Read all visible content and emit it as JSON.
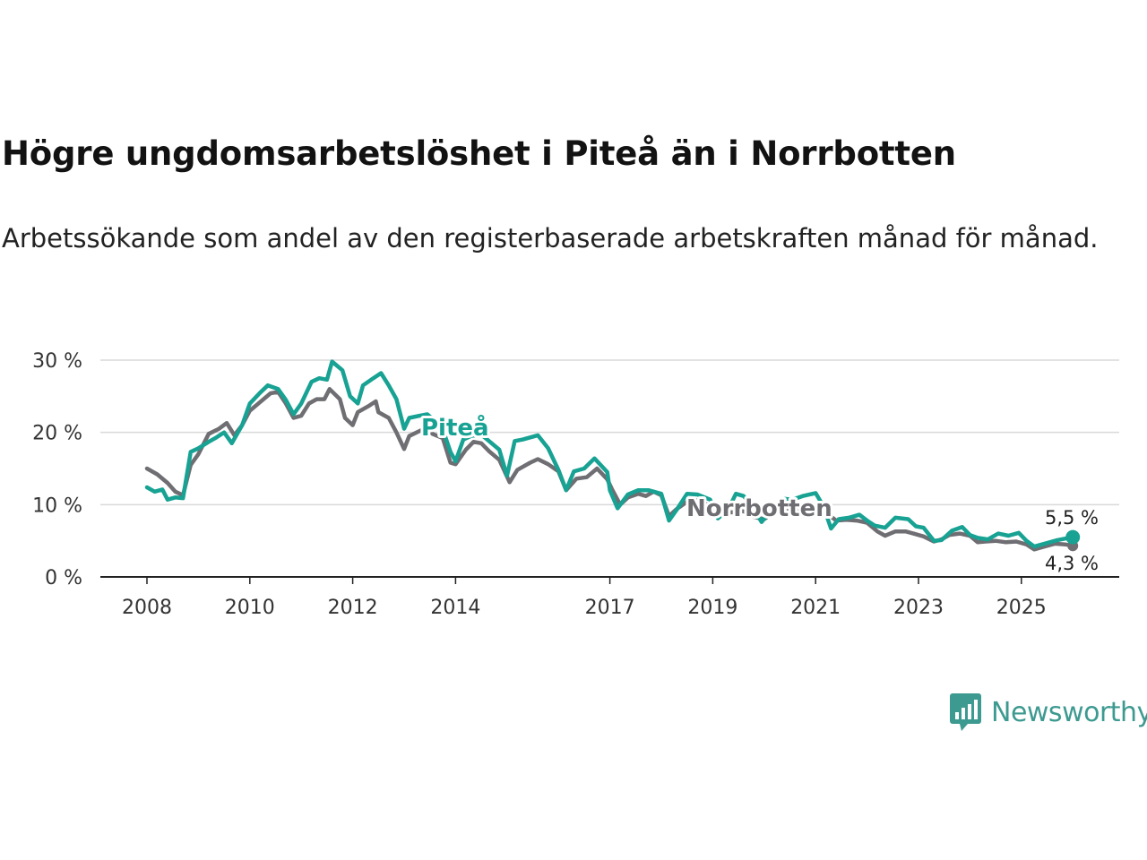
{
  "header": {
    "title": "Högre ungdomsarbetslöshet i Piteå än i Norrbotten",
    "subtitle": "Arbetssökande som andel av den registerbaserade arbetskraften månad för månad."
  },
  "brand": {
    "name": "Newsworthy",
    "icon": "newsworthy-logo-icon",
    "color": "#3d9a90"
  },
  "chart_data": {
    "type": "line",
    "title": "Högre ungdomsarbetslöshet i Piteå än i Norrbotten",
    "ylabel": "",
    "xlabel": "",
    "ylim": [
      0,
      30
    ],
    "xlim": [
      2007.7,
      2026.4
    ],
    "grid": true,
    "yticks": [
      0,
      10,
      20,
      30
    ],
    "ytick_labels": [
      "0 %",
      "10 %",
      "20 %",
      "30 %"
    ],
    "xticks": [
      2008,
      2010,
      2012,
      2014,
      2017,
      2019,
      2021,
      2023,
      2025
    ],
    "xtick_labels": [
      "2008",
      "2010",
      "2012",
      "2014",
      "2017",
      "2019",
      "2021",
      "2023",
      "2025"
    ],
    "series": [
      {
        "name": "Norrbotten",
        "label": "Norrbotten",
        "color": "#6e6e73",
        "end_label": "4,3 %",
        "points": [
          [
            2008.0,
            15.0
          ],
          [
            2008.2,
            14.2
          ],
          [
            2008.4,
            13.0
          ],
          [
            2008.55,
            11.8
          ],
          [
            2008.7,
            11.3
          ],
          [
            2008.85,
            15.5
          ],
          [
            2009.0,
            17.0
          ],
          [
            2009.2,
            19.8
          ],
          [
            2009.4,
            20.5
          ],
          [
            2009.55,
            21.3
          ],
          [
            2009.7,
            19.6
          ],
          [
            2009.85,
            21.0
          ],
          [
            2010.0,
            23.0
          ],
          [
            2010.2,
            24.2
          ],
          [
            2010.4,
            25.4
          ],
          [
            2010.55,
            25.6
          ],
          [
            2010.7,
            24.0
          ],
          [
            2010.85,
            22.0
          ],
          [
            2011.0,
            22.3
          ],
          [
            2011.15,
            24.0
          ],
          [
            2011.3,
            24.6
          ],
          [
            2011.45,
            24.6
          ],
          [
            2011.55,
            26.0
          ],
          [
            2011.75,
            24.6
          ],
          [
            2011.85,
            22.0
          ],
          [
            2012.0,
            21.0
          ],
          [
            2012.1,
            22.8
          ],
          [
            2012.3,
            23.6
          ],
          [
            2012.45,
            24.3
          ],
          [
            2012.5,
            22.8
          ],
          [
            2012.7,
            22.0
          ],
          [
            2012.85,
            20.0
          ],
          [
            2013.0,
            17.7
          ],
          [
            2013.1,
            19.5
          ],
          [
            2013.3,
            20.2
          ],
          [
            2013.45,
            20.7
          ],
          [
            2013.55,
            19.8
          ],
          [
            2013.75,
            19.2
          ],
          [
            2013.9,
            15.8
          ],
          [
            2014.0,
            15.6
          ],
          [
            2014.2,
            17.6
          ],
          [
            2014.35,
            18.7
          ],
          [
            2014.5,
            18.5
          ],
          [
            2014.65,
            17.4
          ],
          [
            2014.85,
            16.2
          ],
          [
            2015.05,
            13.1
          ],
          [
            2015.2,
            14.8
          ],
          [
            2015.45,
            15.8
          ],
          [
            2015.6,
            16.3
          ],
          [
            2015.8,
            15.6
          ],
          [
            2016.0,
            14.6
          ],
          [
            2016.15,
            12.0
          ],
          [
            2016.35,
            13.6
          ],
          [
            2016.55,
            13.8
          ],
          [
            2016.75,
            15.0
          ],
          [
            2016.95,
            13.5
          ],
          [
            2017.05,
            12.0
          ],
          [
            2017.2,
            10.0
          ],
          [
            2017.35,
            11.0
          ],
          [
            2017.55,
            11.5
          ],
          [
            2017.7,
            11.2
          ],
          [
            2017.85,
            11.8
          ],
          [
            2018.0,
            11.3
          ],
          [
            2018.15,
            8.4
          ],
          [
            2018.3,
            9.4
          ],
          [
            2018.5,
            10.4
          ],
          [
            2018.7,
            10.6
          ],
          [
            2018.9,
            10.0
          ],
          [
            2019.1,
            8.4
          ],
          [
            2019.3,
            8.9
          ],
          [
            2019.6,
            9.1
          ],
          [
            2019.8,
            8.3
          ],
          [
            2020.0,
            8.0
          ],
          [
            2020.2,
            9.0
          ],
          [
            2020.4,
            9.2
          ],
          [
            2020.6,
            9.2
          ],
          [
            2020.8,
            9.0
          ],
          [
            2021.0,
            8.7
          ],
          [
            2021.2,
            8.9
          ],
          [
            2021.4,
            7.8
          ],
          [
            2021.6,
            7.9
          ],
          [
            2021.8,
            7.8
          ],
          [
            2022.0,
            7.5
          ],
          [
            2022.2,
            6.3
          ],
          [
            2022.35,
            5.7
          ],
          [
            2022.55,
            6.3
          ],
          [
            2022.75,
            6.3
          ],
          [
            2022.9,
            6.0
          ],
          [
            2023.1,
            5.6
          ],
          [
            2023.3,
            4.9
          ],
          [
            2023.45,
            5.2
          ],
          [
            2023.6,
            5.8
          ],
          [
            2023.8,
            6.0
          ],
          [
            2024.0,
            5.7
          ],
          [
            2024.15,
            4.8
          ],
          [
            2024.3,
            4.9
          ],
          [
            2024.5,
            5.0
          ],
          [
            2024.7,
            4.8
          ],
          [
            2024.9,
            4.9
          ],
          [
            2025.1,
            4.5
          ],
          [
            2025.25,
            3.8
          ],
          [
            2025.45,
            4.2
          ],
          [
            2025.65,
            4.6
          ],
          [
            2025.85,
            4.5
          ],
          [
            2026.0,
            4.3
          ]
        ]
      },
      {
        "name": "Piteå",
        "label": "Piteå",
        "color": "#17a293",
        "end_label": "5,5 %",
        "points": [
          [
            2008.0,
            12.4
          ],
          [
            2008.15,
            11.8
          ],
          [
            2008.3,
            12.1
          ],
          [
            2008.4,
            10.7
          ],
          [
            2008.55,
            11.0
          ],
          [
            2008.7,
            10.9
          ],
          [
            2008.85,
            17.3
          ],
          [
            2009.0,
            17.8
          ],
          [
            2009.2,
            18.7
          ],
          [
            2009.35,
            19.3
          ],
          [
            2009.5,
            20.0
          ],
          [
            2009.65,
            18.5
          ],
          [
            2009.85,
            21.0
          ],
          [
            2010.0,
            24.0
          ],
          [
            2010.2,
            25.5
          ],
          [
            2010.35,
            26.5
          ],
          [
            2010.55,
            26.0
          ],
          [
            2010.7,
            24.5
          ],
          [
            2010.85,
            22.5
          ],
          [
            2011.0,
            24.0
          ],
          [
            2011.2,
            27.0
          ],
          [
            2011.35,
            27.5
          ],
          [
            2011.5,
            27.3
          ],
          [
            2011.6,
            29.8
          ],
          [
            2011.8,
            28.6
          ],
          [
            2011.95,
            25.0
          ],
          [
            2012.1,
            24.0
          ],
          [
            2012.2,
            26.5
          ],
          [
            2012.4,
            27.5
          ],
          [
            2012.55,
            28.2
          ],
          [
            2012.7,
            26.5
          ],
          [
            2012.85,
            24.6
          ],
          [
            2013.0,
            20.5
          ],
          [
            2013.1,
            22.0
          ],
          [
            2013.3,
            22.3
          ],
          [
            2013.45,
            22.5
          ],
          [
            2013.6,
            21.6
          ],
          [
            2013.75,
            20.4
          ],
          [
            2013.9,
            17.3
          ],
          [
            2014.0,
            16.0
          ],
          [
            2014.15,
            19.0
          ],
          [
            2014.3,
            19.5
          ],
          [
            2014.5,
            19.7
          ],
          [
            2014.65,
            18.8
          ],
          [
            2014.85,
            17.6
          ],
          [
            2015.0,
            14.0
          ],
          [
            2015.15,
            18.8
          ],
          [
            2015.3,
            19.0
          ],
          [
            2015.45,
            19.3
          ],
          [
            2015.6,
            19.6
          ],
          [
            2015.8,
            17.8
          ],
          [
            2016.0,
            14.8
          ],
          [
            2016.15,
            12.0
          ],
          [
            2016.3,
            14.6
          ],
          [
            2016.5,
            15.0
          ],
          [
            2016.7,
            16.4
          ],
          [
            2016.95,
            14.5
          ],
          [
            2017.0,
            12.0
          ],
          [
            2017.15,
            9.5
          ],
          [
            2017.35,
            11.4
          ],
          [
            2017.55,
            12.0
          ],
          [
            2017.75,
            12.0
          ],
          [
            2018.0,
            11.5
          ],
          [
            2018.15,
            7.8
          ],
          [
            2018.3,
            9.3
          ],
          [
            2018.5,
            11.5
          ],
          [
            2018.7,
            11.4
          ],
          [
            2018.95,
            10.7
          ],
          [
            2019.1,
            8.1
          ],
          [
            2019.3,
            9.3
          ],
          [
            2019.45,
            11.5
          ],
          [
            2019.6,
            11.2
          ],
          [
            2019.75,
            10.0
          ],
          [
            2019.95,
            7.6
          ],
          [
            2020.2,
            9.8
          ],
          [
            2020.4,
            10.8
          ],
          [
            2020.55,
            10.7
          ],
          [
            2020.75,
            11.2
          ],
          [
            2021.0,
            11.6
          ],
          [
            2021.15,
            9.8
          ],
          [
            2021.3,
            6.7
          ],
          [
            2021.45,
            8.0
          ],
          [
            2021.65,
            8.2
          ],
          [
            2021.85,
            8.6
          ],
          [
            2022.0,
            7.8
          ],
          [
            2022.15,
            7.1
          ],
          [
            2022.35,
            6.8
          ],
          [
            2022.55,
            8.2
          ],
          [
            2022.8,
            8.0
          ],
          [
            2022.95,
            7.0
          ],
          [
            2023.1,
            6.8
          ],
          [
            2023.3,
            5.0
          ],
          [
            2023.45,
            5.1
          ],
          [
            2023.65,
            6.4
          ],
          [
            2023.85,
            6.9
          ],
          [
            2024.0,
            5.8
          ],
          [
            2024.15,
            5.4
          ],
          [
            2024.35,
            5.2
          ],
          [
            2024.55,
            6.0
          ],
          [
            2024.75,
            5.7
          ],
          [
            2024.95,
            6.1
          ],
          [
            2025.1,
            5.0
          ],
          [
            2025.25,
            4.2
          ],
          [
            2025.45,
            4.6
          ],
          [
            2025.7,
            5.1
          ],
          [
            2026.0,
            5.5
          ]
        ]
      }
    ]
  }
}
